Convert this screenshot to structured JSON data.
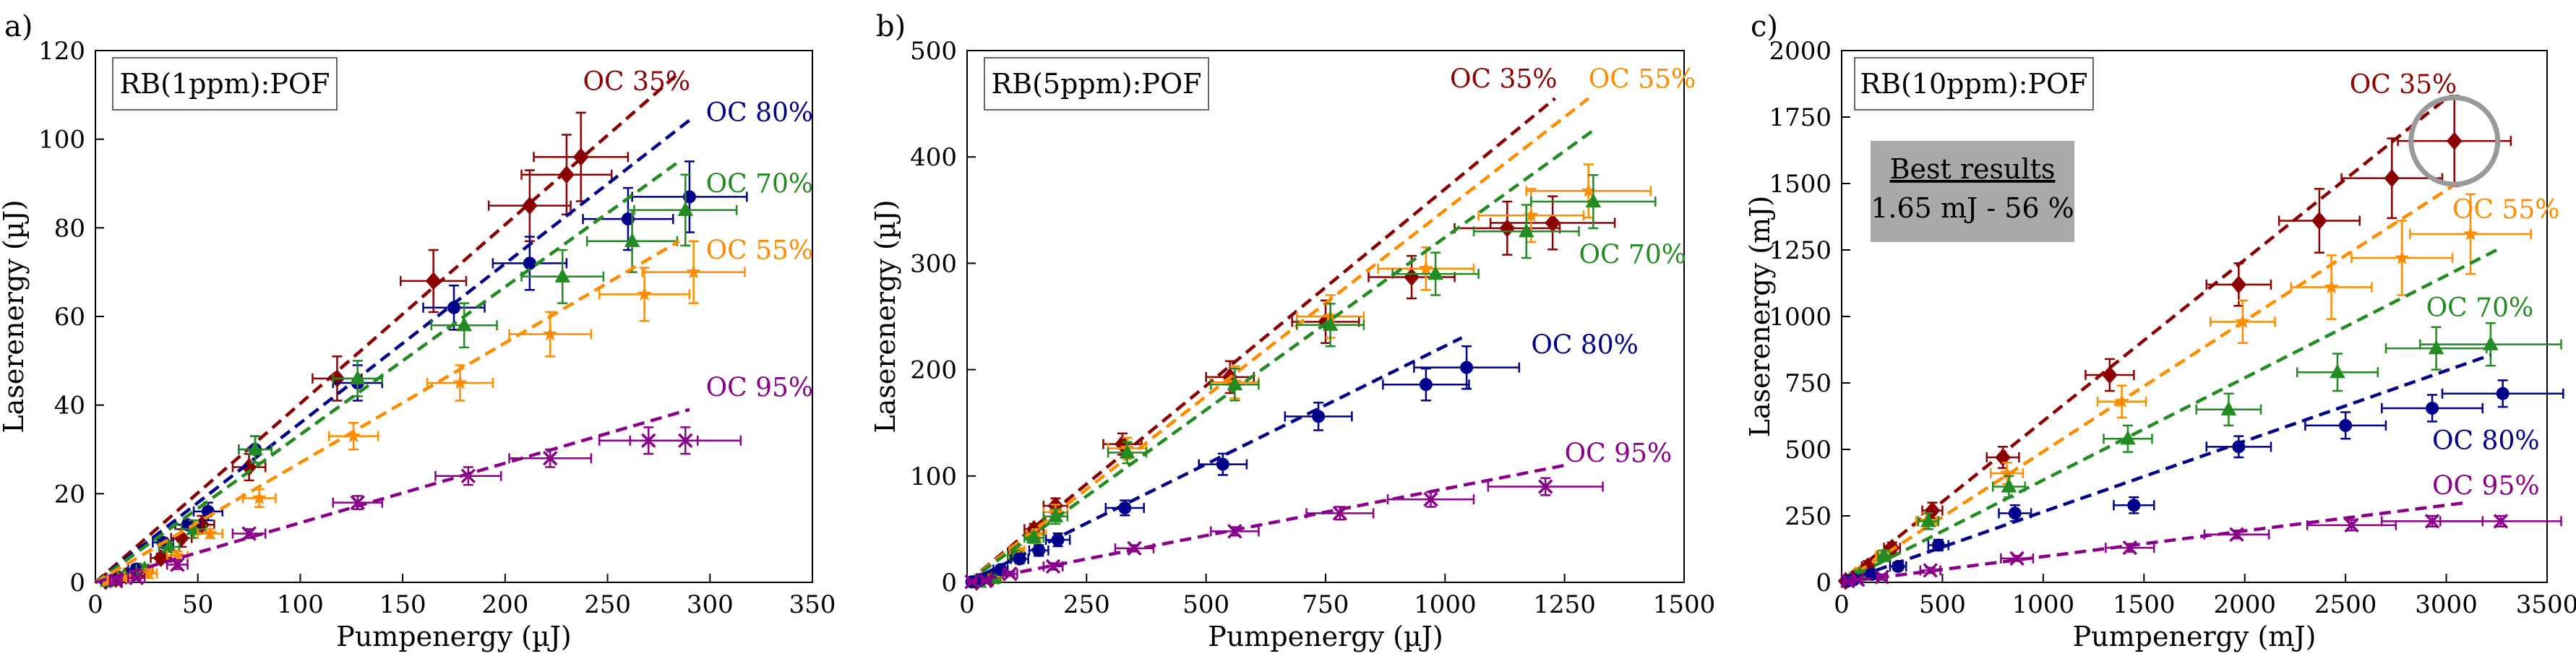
{
  "colors": {
    "OC 35%": "#8b0000",
    "OC 55%": "#ff8c00",
    "OC 70%": "#228b22",
    "OC 80%": "#00008b",
    "OC 95%": "#8b008b"
  },
  "chart_data": [
    {
      "type": "scatter",
      "panel": "a)",
      "legend": "RB(1ppm):POF",
      "xlabel": "Pumpenergy (µJ)",
      "ylabel": "Laserenergy (µJ)",
      "xlim": [
        0,
        350
      ],
      "ylim": [
        0,
        120
      ],
      "xticks": [
        0,
        50,
        100,
        150,
        200,
        250,
        300,
        350
      ],
      "yticks": [
        0,
        20,
        40,
        60,
        80,
        100,
        120
      ],
      "series": [
        {
          "name": "OC 35%",
          "marker": "diamond",
          "x": [
            5,
            10,
            15,
            22,
            32,
            42,
            52,
            75,
            118,
            165,
            212,
            230,
            237
          ],
          "y": [
            0.3,
            0.8,
            1.5,
            2.5,
            5.5,
            10,
            13,
            26,
            46,
            68,
            85,
            92,
            96
          ],
          "xerr": [
            2,
            2,
            3,
            4,
            5,
            5,
            6,
            8,
            12,
            16,
            20,
            22,
            23
          ],
          "yerr": [
            0.5,
            0.5,
            0.5,
            1,
            1,
            2,
            2,
            3,
            5,
            7,
            8,
            9,
            10
          ],
          "fit": [
            [
              0,
              0
            ],
            [
              285,
              115
            ]
          ]
        },
        {
          "name": "OC 80%",
          "marker": "circle",
          "x": [
            5,
            12,
            20,
            33,
            45,
            55,
            78,
            128,
            175,
            212,
            260,
            290
          ],
          "y": [
            0.3,
            1,
            3,
            9,
            13,
            16,
            30,
            45,
            62,
            72,
            82,
            87
          ],
          "xerr": [
            2,
            3,
            4,
            5,
            6,
            7,
            8,
            12,
            15,
            18,
            22,
            28
          ],
          "yerr": [
            0.5,
            0.5,
            1,
            1,
            1,
            2,
            3,
            4,
            5,
            6,
            7,
            8
          ],
          "fit": [
            [
              0,
              0
            ],
            [
              292,
              105
            ]
          ]
        },
        {
          "name": "OC 70%",
          "marker": "triangle",
          "x": [
            6,
            14,
            24,
            36,
            48,
            78,
            128,
            180,
            228,
            262,
            288
          ],
          "y": [
            0.3,
            1.5,
            3,
            8,
            12,
            30,
            46,
            58,
            69,
            77,
            84
          ],
          "xerr": [
            2,
            3,
            4,
            5,
            6,
            8,
            12,
            16,
            20,
            22,
            25
          ],
          "yerr": [
            0.5,
            0.5,
            1,
            1,
            2,
            3,
            4,
            5,
            6,
            7,
            8
          ],
          "fit": [
            [
              0,
              0
            ],
            [
              285,
              95
            ]
          ]
        },
        {
          "name": "OC 55%",
          "marker": "star",
          "x": [
            6,
            14,
            26,
            40,
            56,
            80,
            126,
            178,
            222,
            268,
            292
          ],
          "y": [
            0.3,
            1,
            2,
            6,
            11,
            19,
            33,
            45,
            56,
            65,
            70
          ],
          "xerr": [
            2,
            3,
            4,
            5,
            6,
            8,
            12,
            16,
            20,
            22,
            25
          ],
          "yerr": [
            0.5,
            0.5,
            1,
            1,
            1,
            2,
            3,
            4,
            5,
            6,
            7
          ],
          "fit": [
            [
              0,
              0
            ],
            [
              285,
              77
            ]
          ]
        },
        {
          "name": "OC 95%",
          "marker": "cross",
          "x": [
            10,
            20,
            40,
            75,
            128,
            182,
            222,
            270,
            288
          ],
          "y": [
            0.3,
            1,
            4,
            11,
            18,
            24,
            28,
            32,
            32
          ],
          "xerr": [
            3,
            4,
            5,
            8,
            12,
            16,
            20,
            24,
            27
          ],
          "yerr": [
            0.5,
            0.5,
            1,
            1,
            1.5,
            2,
            2,
            3,
            3
          ],
          "fit": [
            [
              0,
              0
            ],
            [
              290,
              39
            ]
          ]
        }
      ],
      "labels": [
        {
          "name": "OC 35%",
          "x": 238,
          "y": 111
        },
        {
          "name": "OC 80%",
          "x": 298,
          "y": 104
        },
        {
          "name": "OC 70%",
          "x": 298,
          "y": 88
        },
        {
          "name": "OC 55%",
          "x": 298,
          "y": 73
        },
        {
          "name": "OC 95%",
          "x": 298,
          "y": 42
        }
      ]
    },
    {
      "type": "scatter",
      "panel": "b)",
      "legend": "RB(5ppm):POF",
      "xlabel": "Pumpenergy (µJ)",
      "ylabel": "Laserenergy (µJ)",
      "xlim": [
        0,
        1500
      ],
      "ylim": [
        0,
        500
      ],
      "xticks": [
        0,
        250,
        500,
        750,
        1000,
        1250,
        1500
      ],
      "yticks": [
        0,
        100,
        200,
        300,
        400,
        500
      ],
      "series": [
        {
          "name": "OC 35%",
          "marker": "diamond",
          "x": [
            20,
            50,
            100,
            140,
            185,
            325,
            550,
            750,
            930,
            1130,
            1225
          ],
          "y": [
            0.5,
            3,
            28,
            50,
            72,
            130,
            193,
            245,
            287,
            333,
            338
          ],
          "xerr": [
            10,
            15,
            15,
            20,
            25,
            40,
            50,
            70,
            90,
            110,
            130
          ],
          "yerr": [
            2,
            3,
            5,
            5,
            7,
            10,
            15,
            20,
            20,
            25,
            25
          ],
          "fit": [
            [
              0,
              0
            ],
            [
              1230,
              455
            ]
          ]
        },
        {
          "name": "OC 55%",
          "marker": "star",
          "x": [
            25,
            60,
            105,
            145,
            185,
            335,
            560,
            760,
            960,
            1180,
            1300
          ],
          "y": [
            0.5,
            5,
            30,
            45,
            66,
            126,
            188,
            250,
            295,
            345,
            368
          ],
          "xerr": [
            10,
            15,
            15,
            20,
            25,
            40,
            50,
            70,
            100,
            110,
            130
          ],
          "yerr": [
            2,
            3,
            5,
            5,
            7,
            10,
            15,
            20,
            20,
            25,
            25
          ],
          "fit": [
            [
              0,
              0
            ],
            [
              1300,
              455
            ]
          ]
        },
        {
          "name": "OC 70%",
          "marker": "triangle",
          "x": [
            25,
            55,
            100,
            140,
            185,
            335,
            560,
            760,
            980,
            1170,
            1310
          ],
          "y": [
            0.5,
            4,
            25,
            42,
            62,
            122,
            186,
            242,
            290,
            330,
            358
          ],
          "xerr": [
            10,
            15,
            15,
            20,
            25,
            40,
            50,
            70,
            90,
            110,
            130
          ],
          "yerr": [
            2,
            3,
            5,
            5,
            7,
            10,
            15,
            20,
            20,
            25,
            25
          ],
          "fit": [
            [
              0,
              0
            ],
            [
              1310,
              425
            ]
          ]
        },
        {
          "name": "OC 80%",
          "marker": "circle",
          "x": [
            10,
            30,
            70,
            110,
            150,
            190,
            330,
            535,
            735,
            960,
            1045
          ],
          "y": [
            0.5,
            3,
            12,
            22,
            30,
            40,
            70,
            111,
            156,
            186,
            202
          ],
          "xerr": [
            8,
            10,
            15,
            18,
            20,
            25,
            40,
            50,
            70,
            90,
            110
          ],
          "yerr": [
            2,
            2,
            3,
            4,
            5,
            6,
            7,
            10,
            13,
            15,
            20
          ],
          "fit": [
            [
              0,
              0
            ],
            [
              1035,
              230
            ]
          ]
        },
        {
          "name": "OC 95%",
          "marker": "cross",
          "x": [
            10,
            40,
            90,
            180,
            350,
            560,
            780,
            970,
            1210
          ],
          "y": [
            0.5,
            2,
            8,
            15,
            32,
            48,
            65,
            78,
            90
          ],
          "xerr": [
            8,
            10,
            15,
            20,
            40,
            50,
            70,
            90,
            120
          ],
          "yerr": [
            2,
            2,
            2,
            3,
            3,
            4,
            6,
            7,
            8
          ],
          "fit": [
            [
              0,
              0
            ],
            [
              1250,
              110
            ]
          ]
        }
      ],
      "labels": [
        {
          "name": "OC 35%",
          "x": 1010,
          "y": 465
        },
        {
          "name": "OC 55%",
          "x": 1300,
          "y": 465
        },
        {
          "name": "OC 70%",
          "x": 1280,
          "y": 300
        },
        {
          "name": "OC 80%",
          "x": 1180,
          "y": 215
        },
        {
          "name": "OC 95%",
          "x": 1250,
          "y": 113
        }
      ]
    },
    {
      "type": "scatter",
      "panel": "c)",
      "legend": "RB(10ppm):POF",
      "xlabel": "Pumpenergy (mJ)",
      "ylabel": "Laserenergy (mJ)",
      "xlim": [
        0,
        3500
      ],
      "ylim": [
        0,
        2000
      ],
      "xticks": [
        0,
        500,
        1000,
        1500,
        2000,
        2500,
        3000,
        3500
      ],
      "yticks": [
        0,
        250,
        500,
        750,
        1000,
        1250,
        1500,
        1750,
        2000
      ],
      "annotation": {
        "title": "Best results",
        "value": "1.65 mJ - 56 %"
      },
      "highlight": {
        "x": 3040,
        "y": 1660
      },
      "series": [
        {
          "name": "OC 35%",
          "marker": "diamond",
          "x": [
            20,
            70,
            130,
            250,
            450,
            800,
            1330,
            1970,
            2370,
            2730,
            3040
          ],
          "y": [
            5,
            25,
            60,
            130,
            270,
            470,
            780,
            1120,
            1360,
            1520,
            1660
          ],
          "xerr": [
            10,
            20,
            30,
            40,
            50,
            80,
            120,
            160,
            200,
            250,
            280
          ],
          "yerr": [
            5,
            10,
            20,
            20,
            30,
            40,
            60,
            80,
            120,
            150,
            170
          ],
          "fit": [
            [
              0,
              0
            ],
            [
              3000,
              1820
            ]
          ]
        },
        {
          "name": "OC 55%",
          "marker": "star",
          "x": [
            40,
            90,
            200,
            420,
            820,
            1390,
            1990,
            2430,
            2780,
            3120
          ],
          "y": [
            10,
            40,
            100,
            230,
            410,
            680,
            980,
            1110,
            1220,
            1310
          ],
          "xerr": [
            10,
            20,
            30,
            50,
            80,
            120,
            160,
            200,
            250,
            300
          ],
          "yerr": [
            5,
            10,
            20,
            30,
            40,
            60,
            80,
            120,
            140,
            150
          ],
          "fit": [
            [
              0,
              0
            ],
            [
              3050,
              1500
            ]
          ]
        },
        {
          "name": "OC 70%",
          "marker": "triangle",
          "x": [
            40,
            90,
            210,
            430,
            830,
            1420,
            1920,
            2460,
            2950,
            3220
          ],
          "y": [
            10,
            30,
            100,
            230,
            360,
            540,
            650,
            790,
            880,
            895
          ],
          "xerr": [
            10,
            20,
            30,
            50,
            80,
            120,
            160,
            200,
            250,
            350
          ],
          "yerr": [
            5,
            10,
            20,
            30,
            40,
            50,
            60,
            70,
            80,
            80
          ],
          "fit": [
            [
              0,
              0
            ],
            [
              3250,
              1250
            ]
          ]
        },
        {
          "name": "OC 80%",
          "marker": "circle",
          "x": [
            30,
            60,
            150,
            280,
            480,
            860,
            1450,
            1970,
            2500,
            2930,
            3280
          ],
          "y": [
            5,
            10,
            30,
            60,
            140,
            260,
            290,
            510,
            590,
            655,
            710
          ],
          "xerr": [
            10,
            15,
            25,
            40,
            50,
            80,
            100,
            160,
            200,
            250,
            300
          ],
          "yerr": [
            5,
            5,
            10,
            15,
            20,
            30,
            30,
            40,
            50,
            50,
            50
          ],
          "fit": [
            [
              0,
              0
            ],
            [
              3220,
              855
            ]
          ]
        },
        {
          "name": "OC 95%",
          "marker": "cross",
          "x": [
            30,
            80,
            200,
            440,
            870,
            1430,
            1960,
            2530,
            2930,
            3270
          ],
          "y": [
            5,
            10,
            20,
            45,
            90,
            130,
            180,
            215,
            230,
            230
          ],
          "xerr": [
            10,
            15,
            25,
            50,
            80,
            120,
            160,
            220,
            250,
            300
          ],
          "yerr": [
            5,
            5,
            10,
            10,
            10,
            15,
            15,
            20,
            20,
            20
          ],
          "fit": [
            [
              0,
              0
            ],
            [
              3100,
              300
            ]
          ]
        }
      ],
      "labels": [
        {
          "name": "OC 35%",
          "x": 2520,
          "y": 1840
        },
        {
          "name": "OC 55%",
          "x": 3030,
          "y": 1370
        },
        {
          "name": "OC 70%",
          "x": 2900,
          "y": 1000
        },
        {
          "name": "OC 80%",
          "x": 2930,
          "y": 500
        },
        {
          "name": "OC 95%",
          "x": 2930,
          "y": 330
        }
      ]
    }
  ]
}
